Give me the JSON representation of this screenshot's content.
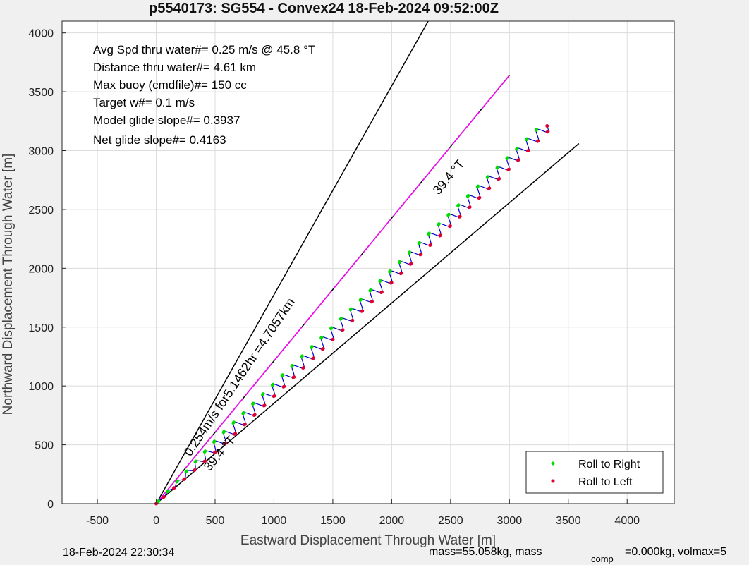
{
  "chart_data": {
    "type": "line",
    "title": "p5540173: SG554 - Convex24 18-Feb-2024 09:52:00Z",
    "xlabel": "Eastward Displacement Through Water [m]",
    "ylabel": "Northward Displacement Through Water [m]",
    "xlim": [
      -800,
      4400
    ],
    "ylim": [
      0,
      4100
    ],
    "xticks": [
      "-500",
      "0",
      "500",
      "1000",
      "1500",
      "2000",
      "2500",
      "3000",
      "3500",
      "4000"
    ],
    "yticks": [
      "0",
      "500",
      "1000",
      "1500",
      "2000",
      "2500",
      "3000",
      "3500",
      "4000"
    ],
    "grid": true,
    "legend_position": "bottom-right",
    "legend": [
      "Roll to Right",
      "Roll to Left"
    ],
    "stats": [
      "Avg Spd thru water#=  0.25 m/s @  45.8         °T",
      "Distance thru water#=  4.61 km",
      "Max buoy (cmdfile)#= 150 cc",
      "Target w#= 0.1 m/s",
      "Model glide slope#= 0.3937",
      "Net glide slope#= 0.4163"
    ],
    "annotations": {
      "speed_label": "0.254m/s for5.1462hr =4.7057km",
      "heading_label_upper": "39.4 °T",
      "heading_label_lower": "39.4 °T"
    },
    "lines": {
      "upper_bound": {
        "x": [
          0,
          2310
        ],
        "y": [
          0,
          4100
        ]
      },
      "lower_bound": {
        "x": [
          0,
          3590
        ],
        "y": [
          0,
          3060
        ]
      },
      "net_heading": {
        "x": [
          0,
          3000
        ],
        "y": [
          0,
          3640
        ],
        "color": "#ff00ff"
      }
    },
    "track": {
      "end_x": 3320,
      "end_y": 3210,
      "wiggles": 40,
      "color": "#0000cc"
    },
    "colors": {
      "roll_right": "#00dd00",
      "roll_left": "#dd0033",
      "track": "#0000cc",
      "heading": "#ff00ff"
    }
  },
  "footer": {
    "timestamp": "18-Feb-2024 22:30:34",
    "mass_text": "mass=55.058kg, mass",
    "comp_sub": "comp",
    "comp_text": "=0.000kg, volmax=5"
  }
}
